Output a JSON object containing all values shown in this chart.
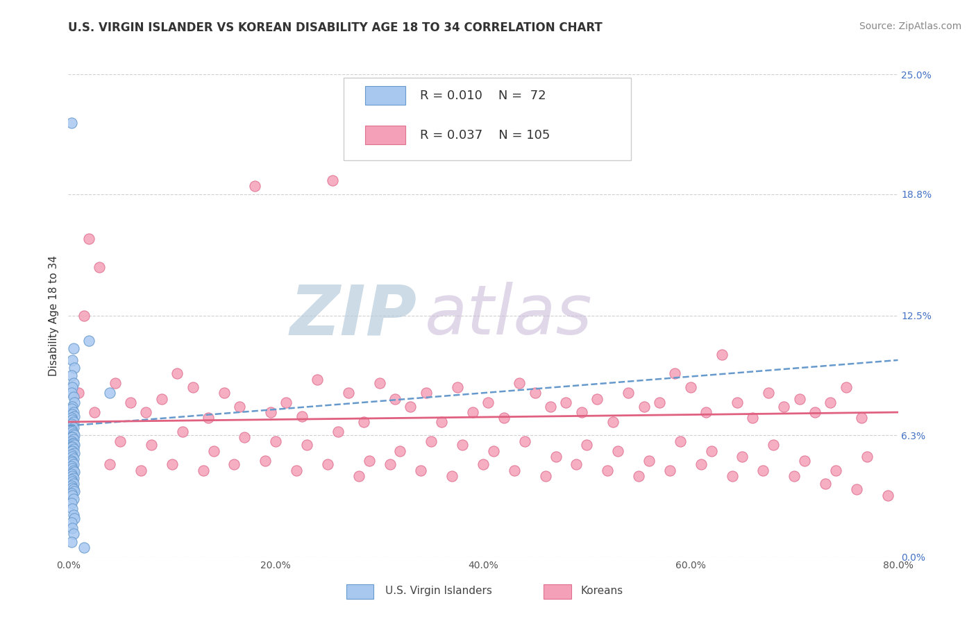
{
  "title": "U.S. VIRGIN ISLANDER VS KOREAN DISABILITY AGE 18 TO 34 CORRELATION CHART",
  "source": "Source: ZipAtlas.com",
  "xlabel_vals": [
    0.0,
    20.0,
    40.0,
    60.0,
    80.0
  ],
  "ylabel": "Disability Age 18 to 34",
  "ylabel_vals": [
    0.0,
    6.3,
    12.5,
    18.8,
    25.0
  ],
  "xlim": [
    0,
    80
  ],
  "ylim": [
    0,
    25
  ],
  "R_blue": "0.010",
  "N_blue": "72",
  "R_pink": "0.037",
  "N_pink": "105",
  "blue_color": "#a8c8f0",
  "pink_color": "#f4a0b8",
  "blue_edge": "#6699cc",
  "pink_edge": "#e07090",
  "trend_blue_color": "#6699cc",
  "trend_pink_color": "#e06080",
  "watermark_zip": "ZIP",
  "watermark_atlas": "atlas",
  "watermark_color_zip": "#c0d0e8",
  "watermark_color_atlas": "#d8c8e8",
  "title_fontsize": 12,
  "axis_label_fontsize": 11,
  "tick_fontsize": 10,
  "legend_fontsize": 13,
  "source_fontsize": 10,
  "blue_trend_x0": 0,
  "blue_trend_y0": 6.8,
  "blue_trend_x1": 80,
  "blue_trend_y1": 10.2,
  "pink_trend_x0": 0,
  "pink_trend_y0": 7.0,
  "pink_trend_x1": 80,
  "pink_trend_y1": 7.5,
  "blue_scatter_x": [
    0.3,
    0.5,
    0.4,
    0.6,
    0.3,
    0.5,
    0.4,
    0.3,
    0.5,
    0.6,
    0.4,
    0.3,
    0.5,
    0.4,
    0.6,
    0.3,
    0.4,
    0.5,
    0.3,
    0.4,
    0.5,
    0.3,
    0.4,
    0.5,
    0.6,
    0.3,
    0.4,
    0.5,
    0.3,
    0.4,
    0.5,
    0.6,
    0.3,
    0.4,
    0.5,
    0.3,
    0.4,
    0.6,
    0.3,
    0.4,
    0.5,
    0.3,
    0.4,
    0.5,
    0.3,
    0.4,
    0.5,
    0.6,
    0.3,
    0.4,
    0.5,
    0.3,
    0.4,
    0.5,
    0.3,
    0.4,
    0.5,
    0.6,
    0.3,
    0.4,
    0.5,
    0.3,
    0.4,
    0.5,
    0.6,
    0.3,
    0.4,
    0.5,
    0.3,
    4.0,
    2.0,
    1.5
  ],
  "blue_scatter_y": [
    22.5,
    10.8,
    10.2,
    9.8,
    9.4,
    9.0,
    8.8,
    8.5,
    8.3,
    8.0,
    7.8,
    7.7,
    7.5,
    7.4,
    7.3,
    7.2,
    7.1,
    7.0,
    6.9,
    6.8,
    6.7,
    6.6,
    6.5,
    6.4,
    6.3,
    6.2,
    6.2,
    6.1,
    6.0,
    5.9,
    5.9,
    5.8,
    5.7,
    5.7,
    5.6,
    5.5,
    5.5,
    5.4,
    5.3,
    5.2,
    5.1,
    5.0,
    4.9,
    4.8,
    4.7,
    4.6,
    4.5,
    4.4,
    4.3,
    4.2,
    4.1,
    4.0,
    3.9,
    3.8,
    3.7,
    3.6,
    3.5,
    3.4,
    3.3,
    3.2,
    3.0,
    2.8,
    2.5,
    2.2,
    2.0,
    1.8,
    1.5,
    1.2,
    0.8,
    8.5,
    11.2,
    0.5
  ],
  "pink_scatter_x": [
    1.0,
    2.0,
    3.0,
    4.5,
    6.0,
    7.5,
    9.0,
    10.5,
    12.0,
    13.5,
    15.0,
    16.5,
    18.0,
    19.5,
    21.0,
    22.5,
    24.0,
    25.5,
    27.0,
    28.5,
    30.0,
    31.5,
    33.0,
    34.5,
    36.0,
    37.5,
    39.0,
    40.5,
    42.0,
    43.5,
    45.0,
    46.5,
    48.0,
    49.5,
    51.0,
    52.5,
    54.0,
    55.5,
    57.0,
    58.5,
    60.0,
    61.5,
    63.0,
    64.5,
    66.0,
    67.5,
    69.0,
    70.5,
    72.0,
    73.5,
    75.0,
    76.5,
    2.5,
    5.0,
    8.0,
    11.0,
    14.0,
    17.0,
    20.0,
    23.0,
    26.0,
    29.0,
    32.0,
    35.0,
    38.0,
    41.0,
    44.0,
    47.0,
    50.0,
    53.0,
    56.0,
    59.0,
    62.0,
    65.0,
    68.0,
    71.0,
    74.0,
    77.0,
    4.0,
    7.0,
    10.0,
    13.0,
    16.0,
    19.0,
    22.0,
    25.0,
    28.0,
    31.0,
    34.0,
    37.0,
    40.0,
    43.0,
    46.0,
    49.0,
    52.0,
    55.0,
    58.0,
    61.0,
    64.0,
    67.0,
    70.0,
    73.0,
    76.0,
    79.0,
    1.5
  ],
  "pink_scatter_y": [
    8.5,
    16.5,
    15.0,
    9.0,
    8.0,
    7.5,
    8.2,
    9.5,
    8.8,
    7.2,
    8.5,
    7.8,
    19.2,
    7.5,
    8.0,
    7.3,
    9.2,
    19.5,
    8.5,
    7.0,
    9.0,
    8.2,
    7.8,
    8.5,
    7.0,
    8.8,
    7.5,
    8.0,
    7.2,
    9.0,
    8.5,
    7.8,
    8.0,
    7.5,
    8.2,
    7.0,
    8.5,
    7.8,
    8.0,
    9.5,
    8.8,
    7.5,
    10.5,
    8.0,
    7.2,
    8.5,
    7.8,
    8.2,
    7.5,
    8.0,
    8.8,
    7.2,
    7.5,
    6.0,
    5.8,
    6.5,
    5.5,
    6.2,
    6.0,
    5.8,
    6.5,
    5.0,
    5.5,
    6.0,
    5.8,
    5.5,
    6.0,
    5.2,
    5.8,
    5.5,
    5.0,
    6.0,
    5.5,
    5.2,
    5.8,
    5.0,
    4.5,
    5.2,
    4.8,
    4.5,
    4.8,
    4.5,
    4.8,
    5.0,
    4.5,
    4.8,
    4.2,
    4.8,
    4.5,
    4.2,
    4.8,
    4.5,
    4.2,
    4.8,
    4.5,
    4.2,
    4.5,
    4.8,
    4.2,
    4.5,
    4.2,
    3.8,
    3.5,
    3.2,
    12.5
  ]
}
